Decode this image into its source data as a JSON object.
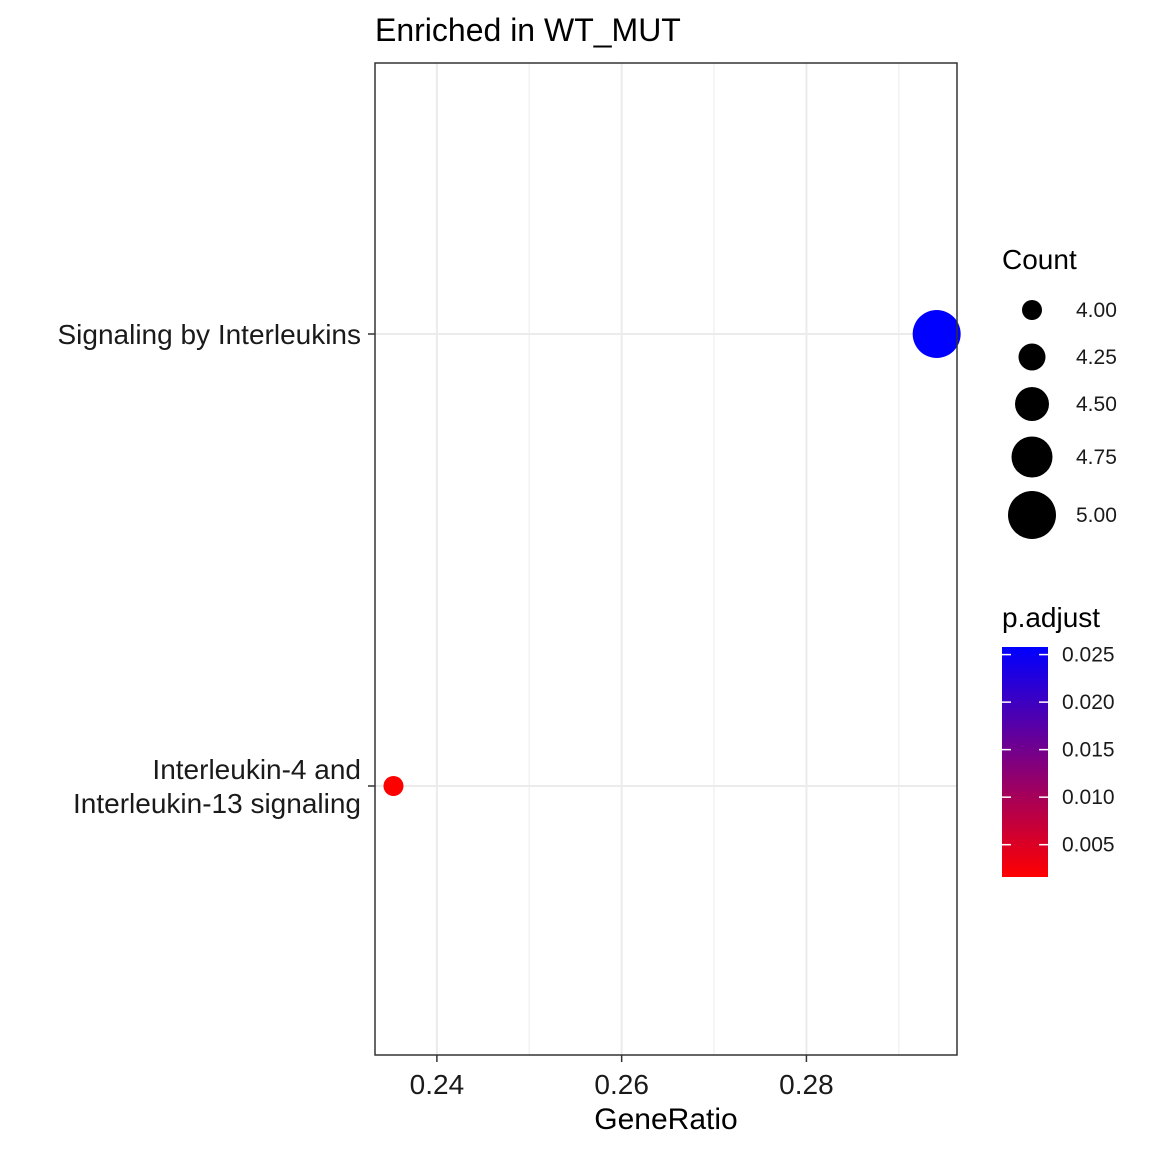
{
  "chart_data": {
    "type": "scatter",
    "title": "Enriched in WT_MUT",
    "xlabel": "GeneRatio",
    "ylabel": "",
    "xlim": [
      0.2333,
      0.2963
    ],
    "x_ticks": [
      "0.24",
      "0.26",
      "0.28"
    ],
    "x_tick_values": [
      0.24,
      0.26,
      0.28
    ],
    "x_minor_values": [
      0.25,
      0.27,
      0.29
    ],
    "categories": [
      {
        "lines": [
          "Interleukin-4 and",
          "Interleukin-13 signaling"
        ]
      },
      {
        "lines": [
          "Signaling by Interleukins"
        ]
      }
    ],
    "points": [
      {
        "category_index": 0,
        "x": 0.2353,
        "count": 4,
        "p_adjust": 0.0016,
        "color": "#ff0000"
      },
      {
        "category_index": 1,
        "x": 0.2941,
        "count": 5,
        "p_adjust": 0.0258,
        "color": "#0000ff"
      }
    ],
    "grid": true,
    "legend_placement": "right",
    "size_legend": {
      "title": "Count",
      "breaks": [
        4.0,
        4.25,
        4.5,
        4.75,
        5.0
      ],
      "labels": [
        "4.00",
        "4.25",
        "4.50",
        "4.75",
        "5.00"
      ]
    },
    "color_legend": {
      "title": "p.adjust",
      "low_color": "#ff0000",
      "high_color": "#0000ff",
      "range": [
        0.0016,
        0.0258
      ],
      "breaks": [
        0.005,
        0.01,
        0.015,
        0.02,
        0.025
      ],
      "labels": [
        "0.005",
        "0.010",
        "0.015",
        "0.020",
        "0.025"
      ]
    }
  }
}
